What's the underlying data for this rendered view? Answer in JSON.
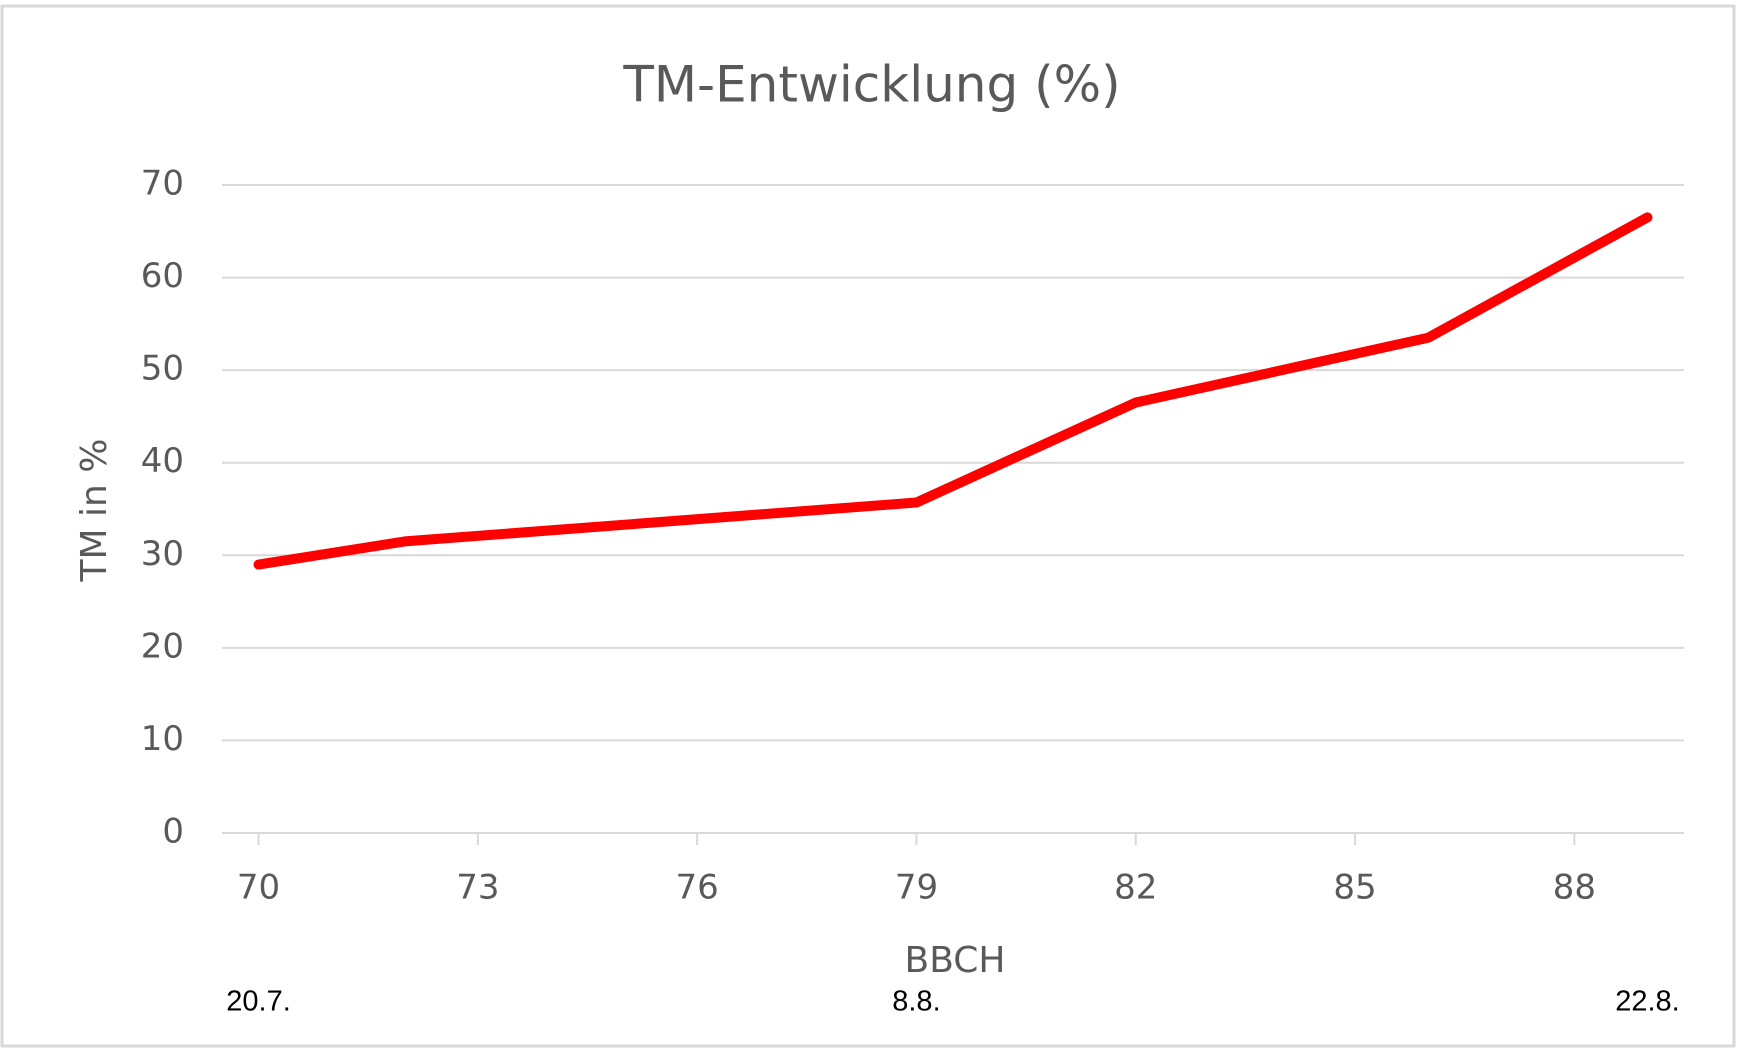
{
  "chart_data": {
    "type": "line",
    "title": "TM-Entwicklung (%)",
    "x_label": "BBCH",
    "y_label": "TM in %",
    "x": [
      70,
      72,
      79,
      82,
      86,
      89
    ],
    "series": [
      {
        "name": "TM",
        "color": "#ff0000",
        "values": [
          29,
          31.5,
          35.7,
          46.5,
          53.5,
          66.5
        ]
      }
    ],
    "xlim": [
      69.5,
      89.5
    ],
    "xticks": [
      70,
      73,
      76,
      79,
      82,
      85,
      88
    ],
    "ylim": [
      0,
      70
    ],
    "yticks": [
      0,
      10,
      20,
      30,
      40,
      50,
      60,
      70
    ],
    "grid": true,
    "annotations": [
      {
        "text": "20.7.",
        "x": 70
      },
      {
        "text": "8.8.",
        "x": 79
      },
      {
        "text": "22.8.",
        "x": 89
      }
    ]
  }
}
